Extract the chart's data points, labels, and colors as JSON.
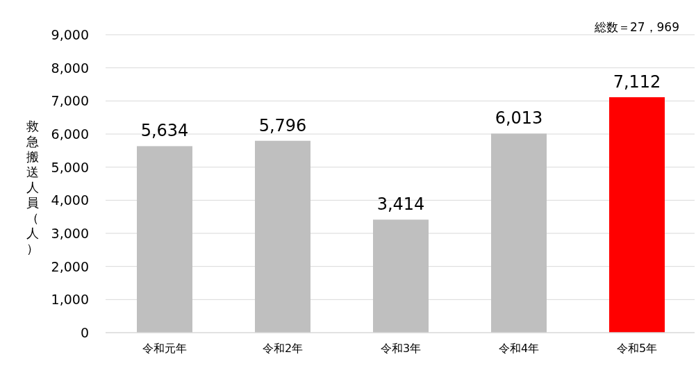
{
  "chart_data": {
    "type": "bar",
    "ylabel": "救急搬送人員（人）",
    "annotations": [
      "総数＝27，969"
    ],
    "categories": [
      "令和元年",
      "令和2年",
      "令和3年",
      "令和4年",
      "令和5年"
    ],
    "values": [
      5634,
      5796,
      3414,
      6013,
      7112
    ],
    "colors": [
      "#bfbfbf",
      "#bfbfbf",
      "#bfbfbf",
      "#bfbfbf",
      "#ff0000"
    ],
    "value_labels": [
      "5,634",
      "5,796",
      "3,414",
      "6,013",
      "7,112"
    ],
    "ylim": [
      0,
      9000
    ],
    "yticks": [
      {
        "value": 0,
        "label": "0"
      },
      {
        "value": 1000,
        "label": "1,000"
      },
      {
        "value": 2000,
        "label": "2,000"
      },
      {
        "value": 3000,
        "label": "3,000"
      },
      {
        "value": 4000,
        "label": "4,000"
      },
      {
        "value": 5000,
        "label": "5,000"
      },
      {
        "value": 6000,
        "label": "6,000"
      },
      {
        "value": 7000,
        "label": "7,000"
      },
      {
        "value": 8000,
        "label": "8,000"
      },
      {
        "value": 9000,
        "label": "9,000"
      }
    ],
    "grid": "y"
  }
}
